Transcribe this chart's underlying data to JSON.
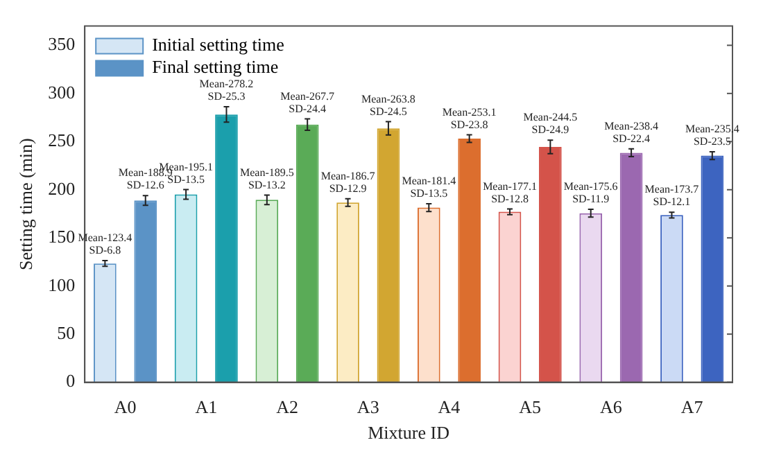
{
  "chart_data": {
    "type": "bar",
    "xlabel": "Mixture ID",
    "ylabel": "Setting time (min)",
    "categories": [
      "A0",
      "A1",
      "A2",
      "A3",
      "A4",
      "A5",
      "A6",
      "A7"
    ],
    "ylim": [
      0,
      370
    ],
    "yticks": [
      0,
      50,
      100,
      150,
      200,
      250,
      300,
      350
    ],
    "grid": false,
    "legend": "top left",
    "series": [
      {
        "name": "Initial setting time",
        "colors": [
          "#d5e6f5",
          "#c9ecf2",
          "#d7efd5",
          "#fcecc4",
          "#fde0cc",
          "#fbd3d1",
          "#ead9f0",
          "#cbdaf5"
        ],
        "values": [
          123.4,
          195.1,
          189.5,
          186.7,
          181.4,
          177.1,
          175.6,
          173.7
        ],
        "errors": [
          3,
          5,
          5,
          4,
          4,
          3,
          4,
          3
        ],
        "value_labels": [
          "Mean-123.4\nSD-6.8",
          "Mean-195.1\nSD-13.5",
          "Mean-189.5\nSD-13.2",
          "Mean-186.7\nSD-12.9",
          "Mean-181.4\nSD-13.5",
          "Mean-177.1\nSD-12.8",
          "Mean-175.6\nSD-11.9",
          "Mean-173.7\nSD-12.1"
        ]
      },
      {
        "name": "Final setting time",
        "colors": [
          "#5b93c6",
          "#1b9fac",
          "#5aab57",
          "#d2a631",
          "#dc6e2e",
          "#d4534a",
          "#9b68b0",
          "#3d64c0"
        ],
        "values": [
          188.9,
          278.2,
          267.7,
          263.8,
          253.1,
          244.5,
          238.4,
          235.4
        ],
        "errors": [
          5,
          8,
          6,
          7,
          4,
          7,
          4,
          4
        ],
        "value_labels": [
          "Mean-188.9\nSD-12.6",
          "Mean-278.2\nSD-25.3",
          "Mean-267.7\nSD-24.4",
          "Mean-263.8\nSD-24.5",
          "Mean-253.1\nSD-23.8",
          "Mean-244.5\nSD-24.9",
          "Mean-238.4\nSD-22.4",
          "Mean-235.4\nSD-23.5"
        ]
      }
    ]
  }
}
